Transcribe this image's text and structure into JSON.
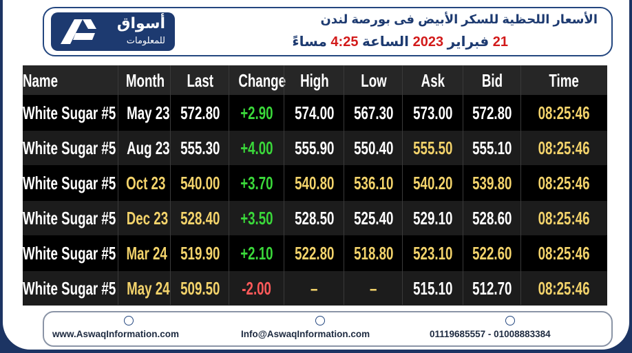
{
  "header": {
    "logo_name": "أسواق",
    "logo_sub": "للمعلومات",
    "title": "الأسعار اللحظية للسكر الأبيض فى بورصة لندن",
    "date_line": [
      "21",
      "فبراير",
      "2023",
      "الساعة",
      "4:25",
      "مساءً"
    ]
  },
  "table": {
    "columns": [
      "Name",
      "Month",
      "Last",
      "Change",
      "High",
      "Low",
      "Ask",
      "Bid",
      "Time"
    ],
    "rows": [
      [
        "White Sugar #5",
        "May 23",
        "572.80",
        "+2.90",
        "574.00",
        "567.30",
        "573.00",
        "572.80",
        "08:25:46"
      ],
      [
        "White Sugar #5",
        "Aug 23",
        "555.30",
        "+4.00",
        "555.90",
        "550.40",
        "555.50",
        "555.10",
        "08:25:46"
      ],
      [
        "White Sugar #5",
        "Oct 23",
        "540.00",
        "+3.70",
        "540.80",
        "536.10",
        "540.20",
        "539.80",
        "08:25:46"
      ],
      [
        "White Sugar #5",
        "Dec 23",
        "528.40",
        "+3.50",
        "528.50",
        "525.40",
        "529.10",
        "528.60",
        "08:25:46"
      ],
      [
        "White Sugar #5",
        "Mar 24",
        "519.90",
        "+2.10",
        "522.80",
        "518.80",
        "523.10",
        "522.60",
        "08:25:46"
      ],
      [
        "White Sugar #5",
        "May 24",
        "509.50",
        "-2.00",
        "–",
        "–",
        "515.10",
        "512.70",
        "08:25:46"
      ]
    ],
    "cell_colors": [
      [
        "#ffffff",
        "#ffffff",
        "#ffffff",
        "#3ad83a",
        "#ffffff",
        "#ffffff",
        "#ffffff",
        "#ffffff",
        "#f3d36b"
      ],
      [
        "#ffffff",
        "#ffffff",
        "#ffffff",
        "#3ad83a",
        "#ffffff",
        "#ffffff",
        "#f3d36b",
        "#ffffff",
        "#f3d36b"
      ],
      [
        "#ffffff",
        "#f3d36b",
        "#f3d36b",
        "#3ad83a",
        "#f3d36b",
        "#f3d36b",
        "#f3d36b",
        "#f3d36b",
        "#f3d36b"
      ],
      [
        "#ffffff",
        "#f3d36b",
        "#f3d36b",
        "#3ad83a",
        "#ffffff",
        "#ffffff",
        "#ffffff",
        "#ffffff",
        "#f3d36b"
      ],
      [
        "#ffffff",
        "#f3d36b",
        "#f3d36b",
        "#3ad83a",
        "#f3d36b",
        "#f3d36b",
        "#f3d36b",
        "#f3d36b",
        "#f3d36b"
      ],
      [
        "#ffffff",
        "#f3d36b",
        "#f3d36b",
        "#ff5a5a",
        "#f3d36b",
        "#f3d36b",
        "#ffffff",
        "#ffffff",
        "#f3d36b"
      ]
    ]
  },
  "footer": {
    "website": "www.AswaqInformation.com",
    "email": "Info@AswaqInformation.com",
    "phones": "01119685557 - 01008883384"
  }
}
